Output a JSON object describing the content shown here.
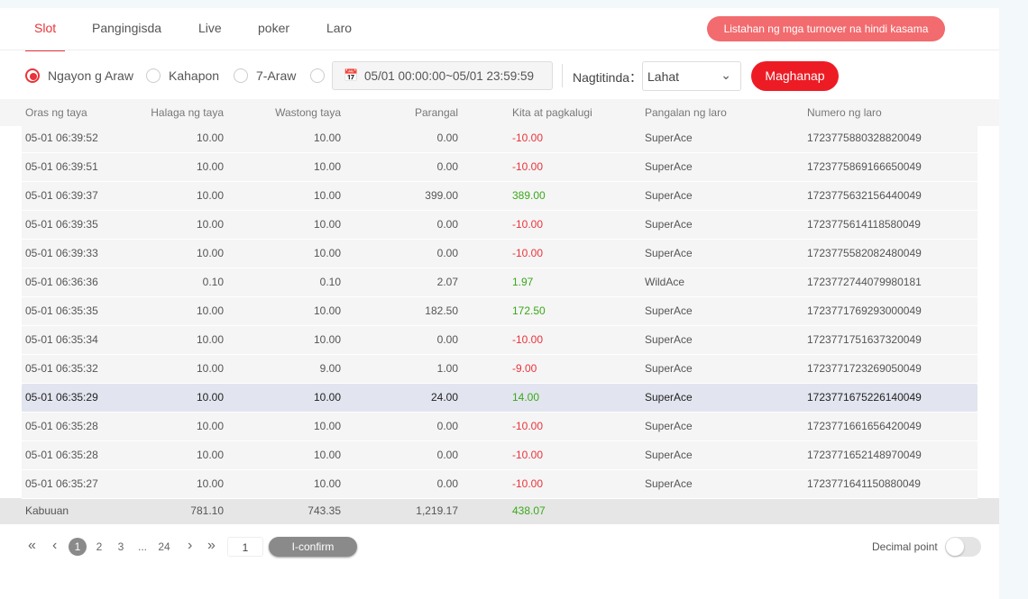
{
  "tabs": [
    "Slot",
    "Pangingisda",
    "Live",
    "poker",
    "Laro"
  ],
  "notice_button": "Listahan ng mga turnover na hindi kasama",
  "filters": {
    "options": [
      "Ngayon g Araw",
      "Kahapon",
      "7-Araw"
    ],
    "date_range": "05/01 00:00:00~05/01 23:59:59",
    "vendor_label": "Nagtitinda：",
    "vendor_value": "Lahat",
    "search_button": "Maghanap"
  },
  "table": {
    "columns": [
      "Oras ng taya",
      "Halaga ng taya",
      "Wastong taya",
      "Parangal",
      "Kita at pagkalugi",
      "Pangalan ng laro",
      "Numero ng laro"
    ],
    "rows": [
      [
        "05-01 06:39:52",
        "10.00",
        "10.00",
        "0.00",
        "-10.00",
        "SuperAce",
        "1723775880328820049"
      ],
      [
        "05-01 06:39:51",
        "10.00",
        "10.00",
        "0.00",
        "-10.00",
        "SuperAce",
        "1723775869166650049"
      ],
      [
        "05-01 06:39:37",
        "10.00",
        "10.00",
        "399.00",
        "389.00",
        "SuperAce",
        "1723775632156440049"
      ],
      [
        "05-01 06:39:35",
        "10.00",
        "10.00",
        "0.00",
        "-10.00",
        "SuperAce",
        "1723775614118580049"
      ],
      [
        "05-01 06:39:33",
        "10.00",
        "10.00",
        "0.00",
        "-10.00",
        "SuperAce",
        "1723775582082480049"
      ],
      [
        "05-01 06:36:36",
        "0.10",
        "0.10",
        "2.07",
        "1.97",
        "WildAce",
        "1723772744079980181"
      ],
      [
        "05-01 06:35:35",
        "10.00",
        "10.00",
        "182.50",
        "172.50",
        "SuperAce",
        "1723771769293000049"
      ],
      [
        "05-01 06:35:34",
        "10.00",
        "10.00",
        "0.00",
        "-10.00",
        "SuperAce",
        "1723771751637320049"
      ],
      [
        "05-01 06:35:32",
        "10.00",
        "9.00",
        "1.00",
        "-9.00",
        "SuperAce",
        "1723771723269050049"
      ],
      [
        "05-01 06:35:29",
        "10.00",
        "10.00",
        "24.00",
        "14.00",
        "SuperAce",
        "1723771675226140049"
      ],
      [
        "05-01 06:35:28",
        "10.00",
        "10.00",
        "0.00",
        "-10.00",
        "SuperAce",
        "1723771661656420049"
      ],
      [
        "05-01 06:35:28",
        "10.00",
        "10.00",
        "0.00",
        "-10.00",
        "SuperAce",
        "1723771652148970049"
      ],
      [
        "05-01 06:35:27",
        "10.00",
        "10.00",
        "0.00",
        "-10.00",
        "SuperAce",
        "1723771641150880049"
      ]
    ],
    "total": [
      "Kabuuan",
      "781.10",
      "743.35",
      "1,219.17",
      "438.07"
    ]
  },
  "pagination": {
    "pages": [
      "1",
      "2",
      "3",
      "...",
      "24"
    ],
    "page_input": "1",
    "confirm": "I-confirm"
  },
  "decimal_label": "Decimal point"
}
